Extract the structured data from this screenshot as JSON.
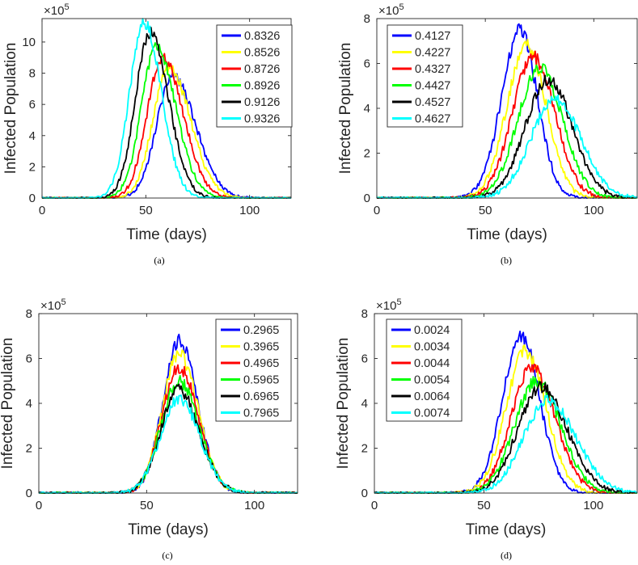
{
  "figure": {
    "title": ""
  },
  "chart_data": [
    {
      "type": "line",
      "caption": "(a)",
      "xlabel": "Time (days)",
      "ylabel": "Infected Population",
      "exponent_base": "×10",
      "exponent_power": "5",
      "xlim": [
        0,
        120
      ],
      "ylim": [
        0,
        11.5
      ],
      "xticks": [
        0,
        50,
        100
      ],
      "yticks": [
        0,
        2,
        4,
        6,
        8,
        10
      ],
      "legend_position": "top-right",
      "series": [
        {
          "name": "0.8326",
          "color": "#0000ff",
          "peak_day": 63,
          "peak_value": 7.8,
          "width_left": 7.8,
          "width_right": 11.0
        },
        {
          "name": "0.8526",
          "color": "#ffff00",
          "peak_day": 61,
          "peak_value": 8.3,
          "width_left": 7.6,
          "width_right": 10.5
        },
        {
          "name": "0.8726",
          "color": "#ff0000",
          "peak_day": 58,
          "peak_value": 9.0,
          "width_left": 7.4,
          "width_right": 10.0
        },
        {
          "name": "0.8926",
          "color": "#00ff00",
          "peak_day": 55,
          "peak_value": 9.6,
          "width_left": 7.2,
          "width_right": 9.5
        },
        {
          "name": "0.9126",
          "color": "#000000",
          "peak_day": 52,
          "peak_value": 10.6,
          "width_left": 7.0,
          "width_right": 9.0
        },
        {
          "name": "0.9326",
          "color": "#00ffff",
          "peak_day": 49,
          "peak_value": 11.3,
          "width_left": 6.8,
          "width_right": 8.5
        }
      ]
    },
    {
      "type": "line",
      "caption": "(b)",
      "xlabel": "Time (days)",
      "ylabel": "Infected Population",
      "exponent_base": "×10",
      "exponent_power": "5",
      "xlim": [
        0,
        120
      ],
      "ylim": [
        0,
        8
      ],
      "xticks": [
        0,
        50,
        100
      ],
      "yticks": [
        0,
        2,
        4,
        6,
        8
      ],
      "legend_position": "top-left",
      "series": [
        {
          "name": "0.4127",
          "color": "#0000ff",
          "peak_day": 66,
          "peak_value": 7.5,
          "width_left": 8.5,
          "width_right": 8.0
        },
        {
          "name": "0.4227",
          "color": "#ffff00",
          "peak_day": 69,
          "peak_value": 6.8,
          "width_left": 9.0,
          "width_right": 9.0
        },
        {
          "name": "0.4327",
          "color": "#ff0000",
          "peak_day": 72,
          "peak_value": 6.3,
          "width_left": 9.5,
          "width_right": 10.0
        },
        {
          "name": "0.4427",
          "color": "#00ff00",
          "peak_day": 75,
          "peak_value": 5.8,
          "width_left": 10.0,
          "width_right": 10.5
        },
        {
          "name": "0.4527",
          "color": "#000000",
          "peak_day": 79,
          "peak_value": 5.3,
          "width_left": 10.5,
          "width_right": 11.0
        },
        {
          "name": "0.4627",
          "color": "#00ffff",
          "peak_day": 82,
          "peak_value": 4.4,
          "width_left": 11.0,
          "width_right": 12.0
        }
      ]
    },
    {
      "type": "line",
      "caption": "(c)",
      "xlabel": "Time (days)",
      "ylabel": "Infected Population",
      "exponent_base": "×10",
      "exponent_power": "5",
      "xlim": [
        0,
        120
      ],
      "ylim": [
        0,
        8
      ],
      "xticks": [
        0,
        50,
        100
      ],
      "yticks": [
        0,
        2,
        4,
        6,
        8
      ],
      "legend_position": "top-right",
      "series": [
        {
          "name": "0.2965",
          "color": "#0000ff",
          "peak_day": 65,
          "peak_value": 6.8,
          "width_left": 7.5,
          "width_right": 8.5
        },
        {
          "name": "0.3965",
          "color": "#ffff00",
          "peak_day": 65,
          "peak_value": 6.2,
          "width_left": 7.8,
          "width_right": 8.8
        },
        {
          "name": "0.4965",
          "color": "#ff0000",
          "peak_day": 65,
          "peak_value": 5.6,
          "width_left": 8.0,
          "width_right": 9.0
        },
        {
          "name": "0.5965",
          "color": "#00ff00",
          "peak_day": 65,
          "peak_value": 5.0,
          "width_left": 8.2,
          "width_right": 9.2
        },
        {
          "name": "0.6965",
          "color": "#000000",
          "peak_day": 65,
          "peak_value": 4.6,
          "width_left": 8.4,
          "width_right": 9.4
        },
        {
          "name": "0.7965",
          "color": "#00ffff",
          "peak_day": 65,
          "peak_value": 4.2,
          "width_left": 8.6,
          "width_right": 9.6
        }
      ]
    },
    {
      "type": "line",
      "caption": "(d)",
      "xlabel": "Time (days)",
      "ylabel": "Infected Population",
      "exponent_base": "×10",
      "exponent_power": "5",
      "xlim": [
        0,
        120
      ],
      "ylim": [
        0,
        8
      ],
      "xticks": [
        0,
        50,
        100
      ],
      "yticks": [
        0,
        2,
        4,
        6,
        8
      ],
      "legend_position": "top-left",
      "series": [
        {
          "name": "0.0024",
          "color": "#0000ff",
          "peak_day": 67,
          "peak_value": 7.0,
          "width_left": 8.5,
          "width_right": 8.5
        },
        {
          "name": "0.0034",
          "color": "#ffff00",
          "peak_day": 69,
          "peak_value": 6.3,
          "width_left": 9.0,
          "width_right": 9.5
        },
        {
          "name": "0.0044",
          "color": "#ff0000",
          "peak_day": 72,
          "peak_value": 5.6,
          "width_left": 9.5,
          "width_right": 10.5
        },
        {
          "name": "0.0054",
          "color": "#00ff00",
          "peak_day": 74,
          "peak_value": 5.0,
          "width_left": 10.0,
          "width_right": 11.0
        },
        {
          "name": "0.0064",
          "color": "#000000",
          "peak_day": 76,
          "peak_value": 4.7,
          "width_left": 10.5,
          "width_right": 12.0
        },
        {
          "name": "0.0074",
          "color": "#00ffff",
          "peak_day": 79,
          "peak_value": 4.1,
          "width_left": 11.0,
          "width_right": 13.0
        }
      ]
    }
  ]
}
